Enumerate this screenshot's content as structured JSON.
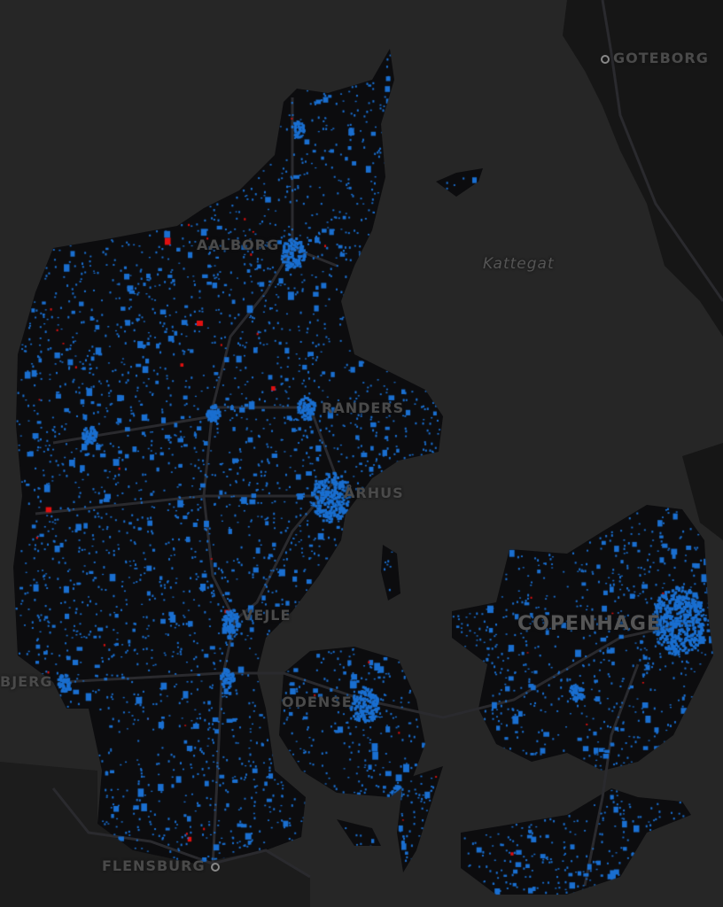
{
  "map": {
    "colors": {
      "sea": "#262626",
      "land": "#0c0c0e",
      "neighbor_land": "#161616",
      "roads": "#2a2a2e",
      "points_primary": "#1a6fd0",
      "points_highlight": "#e01010"
    },
    "labels": {
      "goteborg": "GOTEBORG",
      "aalborg": "AALBORG",
      "kattegat": "Kattegat",
      "randers": "RANDERS",
      "arhus": "ÅRHUS",
      "vejle": "VEJLE",
      "copenhagen": "COPENHAGE",
      "esbjerg": "BJERG",
      "odense": "ODENSE",
      "flensburg": "FLENSBURG"
    }
  }
}
